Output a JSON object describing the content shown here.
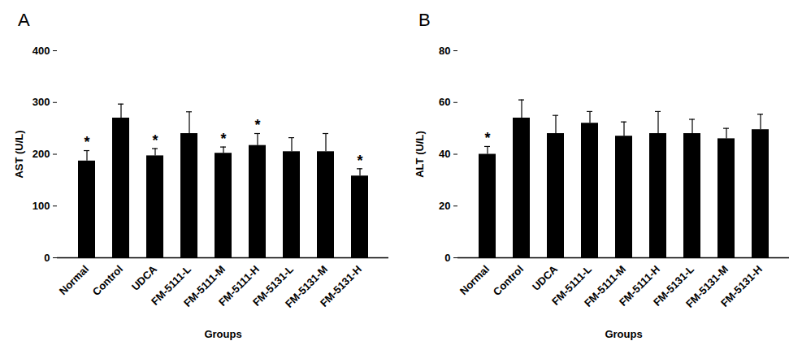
{
  "chart_data": [
    {
      "type": "bar",
      "title": "A",
      "categories": [
        "Normal",
        "Control",
        "UDCA",
        "FM-5111-L",
        "FM-5111-M",
        "FM-5111-H",
        "FM-5131-L",
        "FM-5131-M",
        "FM-5131-H"
      ],
      "values": [
        187,
        270,
        197,
        240,
        202,
        217,
        205,
        205,
        158
      ],
      "errors": [
        20,
        27,
        14,
        42,
        12,
        23,
        27,
        35,
        14
      ],
      "significance": [
        "*",
        null,
        "*",
        null,
        "*",
        "*",
        null,
        null,
        "*"
      ],
      "xlabel": "Groups",
      "ylabel": "AST (U/L)",
      "ylim": [
        0,
        400
      ],
      "yticks": [
        0,
        100,
        200,
        300,
        400
      ],
      "color": "#000000"
    },
    {
      "type": "bar",
      "title": "B",
      "categories": [
        "Normal",
        "Control",
        "UDCA",
        "FM-5111-L",
        "FM-5111-M",
        "FM-5111-H",
        "FM-5131-L",
        "FM-5131-M",
        "FM-5131-H"
      ],
      "values": [
        40,
        54,
        48,
        52,
        47,
        48,
        48,
        46,
        49.5
      ],
      "errors": [
        3,
        7,
        7,
        4.5,
        5.5,
        8.5,
        5.5,
        4,
        6
      ],
      "significance": [
        "*",
        null,
        null,
        null,
        null,
        null,
        null,
        null,
        null
      ],
      "xlabel": "Groups",
      "ylabel": "ALT (U/L)",
      "ylim": [
        0,
        80
      ],
      "yticks": [
        0,
        20,
        40,
        60,
        80
      ],
      "color": "#000000"
    }
  ]
}
